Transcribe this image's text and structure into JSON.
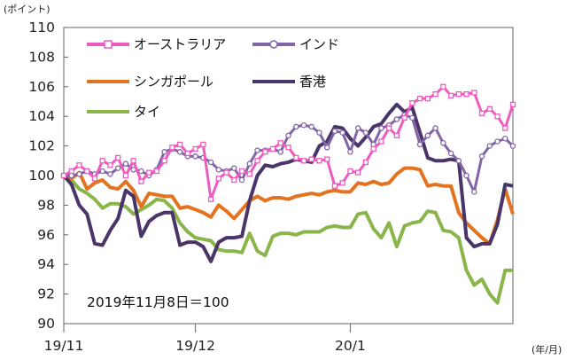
{
  "chart_data": {
    "type": "line",
    "ylabel": "(ポイント)",
    "xlabel": "(年/月)",
    "ylim": [
      90,
      110
    ],
    "yticks": [
      90,
      92,
      94,
      96,
      98,
      100,
      102,
      104,
      106,
      108,
      110
    ],
    "xlim": [
      0,
      58
    ],
    "xticks": [
      {
        "x": 0,
        "label": "19/11"
      },
      {
        "x": 17,
        "label": "19/12"
      },
      {
        "x": 37,
        "label": "20/1"
      }
    ],
    "annotation": "2019年11月8日＝100",
    "series": [
      {
        "name": "オーストラリア",
        "color": "#EE5BC0",
        "marker": "square",
        "values": [
          100.0,
          100.3,
          100.7,
          100.3,
          99.8,
          101.0,
          100.7,
          101.2,
          100.0,
          101.0,
          99.6,
          100.2,
          100.3,
          101.0,
          101.9,
          102.1,
          101.5,
          101.8,
          102.1,
          98.4,
          99.8,
          100.2,
          99.7,
          100.3,
          100.1,
          101.0,
          101.6,
          101.8,
          102.2,
          101.9,
          101.2,
          101.0,
          101.1,
          101.0,
          101.1,
          99.3,
          99.5,
          100.3,
          100.2,
          100.9,
          101.8,
          102.3,
          103.2,
          102.7,
          103.9,
          104.9,
          105.2,
          105.2,
          105.5,
          106.0,
          105.4,
          105.5,
          105.5,
          105.6,
          104.2,
          104.5,
          104.0,
          103.2,
          104.8
        ]
      },
      {
        "name": "インド",
        "color": "#8265A8",
        "marker": "circle",
        "values": [
          100.0,
          100.0,
          100.1,
          100.3,
          100.1,
          100.3,
          100.1,
          100.5,
          100.8,
          100.4,
          100.3,
          100.0,
          100.4,
          101.6,
          101.8,
          101.6,
          101.3,
          101.3,
          101.2,
          100.9,
          100.4,
          100.3,
          100.5,
          99.7,
          100.8,
          101.7,
          101.7,
          101.8,
          101.6,
          102.7,
          103.3,
          103.4,
          103.3,
          102.9,
          101.9,
          103.0,
          102.9,
          101.6,
          103.2,
          102.9,
          102.1,
          103.2,
          103.4,
          103.8,
          104.1,
          103.9,
          102.1,
          102.7,
          103.2,
          102.2,
          101.5,
          101.0,
          100.0,
          98.9,
          101.3,
          102.0,
          102.3,
          102.5,
          102.0
        ]
      },
      {
        "name": "シンガポール",
        "color": "#E3731E",
        "marker": "none",
        "values": [
          100.0,
          99.8,
          100.2,
          99.1,
          99.5,
          99.7,
          99.2,
          99.1,
          99.6,
          99.0,
          97.9,
          98.8,
          98.7,
          98.6,
          98.6,
          97.8,
          97.9,
          97.7,
          97.5,
          97.2,
          98.0,
          97.6,
          97.1,
          97.7,
          98.3,
          98.6,
          98.3,
          98.5,
          98.5,
          98.4,
          98.6,
          98.7,
          98.8,
          98.7,
          98.9,
          99.0,
          98.9,
          98.9,
          99.5,
          99.4,
          99.6,
          99.4,
          99.5,
          100.1,
          100.5,
          100.5,
          100.4,
          99.3,
          99.4,
          99.3,
          99.3,
          97.5,
          96.8,
          96.3,
          95.8,
          95.4,
          97.0,
          99.1,
          97.4
        ]
      },
      {
        "name": "香港",
        "color": "#4A3568",
        "marker": "none",
        "values": [
          100.0,
          99.4,
          98.0,
          97.4,
          95.4,
          95.3,
          96.3,
          97.1,
          99.0,
          98.6,
          95.9,
          96.9,
          97.3,
          97.5,
          97.5,
          95.3,
          95.5,
          95.5,
          95.2,
          94.2,
          95.5,
          95.8,
          95.8,
          95.9,
          98.3,
          100.0,
          100.7,
          100.6,
          100.8,
          100.9,
          101.1,
          101.0,
          100.9,
          102.0,
          102.3,
          103.3,
          103.2,
          102.5,
          102.0,
          102.6,
          103.3,
          103.5,
          104.2,
          104.8,
          104.3,
          104.6,
          102.9,
          101.2,
          101.0,
          101.0,
          101.1,
          101.0,
          95.8,
          95.2,
          95.4,
          95.4,
          96.7,
          99.4,
          99.3
        ]
      },
      {
        "name": "タイ",
        "color": "#89B54B",
        "marker": "none",
        "values": [
          100.0,
          99.7,
          99.1,
          98.8,
          98.4,
          97.8,
          98.1,
          98.1,
          97.9,
          97.4,
          97.7,
          98.0,
          98.4,
          98.3,
          97.8,
          96.8,
          96.2,
          95.8,
          95.7,
          95.6,
          95.0,
          94.9,
          94.9,
          94.8,
          96.1,
          94.9,
          94.6,
          95.9,
          96.1,
          96.1,
          96.0,
          96.2,
          96.2,
          96.2,
          96.5,
          96.6,
          96.5,
          96.5,
          97.4,
          97.5,
          96.4,
          95.8,
          96.8,
          95.2,
          96.6,
          96.8,
          96.9,
          97.6,
          97.5,
          96.3,
          96.2,
          95.8,
          93.6,
          92.6,
          93.0,
          92.0,
          91.4,
          93.6,
          93.6
        ]
      }
    ]
  }
}
